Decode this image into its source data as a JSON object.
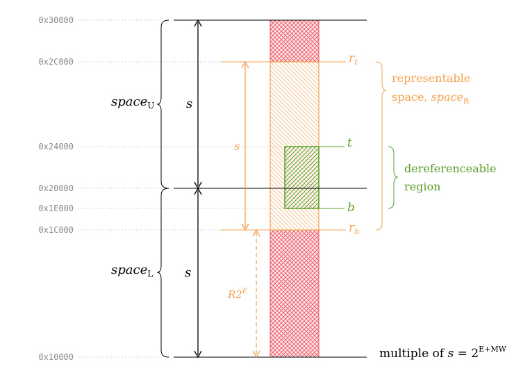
{
  "addresses": [
    "0x30000",
    "0x2C000",
    "0x24000",
    "0x20000",
    "0x1E000",
    "0x1C000",
    "0x10000"
  ],
  "labels": {
    "space_upper": {
      "base": "space",
      "sub": "U"
    },
    "space_lower": {
      "base": "space",
      "sub": "L"
    },
    "s_upper": "s",
    "s_lower": "s",
    "s_repr": "s",
    "r_top": {
      "base": "r",
      "sub": "t"
    },
    "r_bottom": {
      "base": "r",
      "sub": "b"
    },
    "t": "t",
    "b": "b",
    "representable_line1": "representable",
    "representable_line2": "space, ",
    "representable_space": {
      "base": "space",
      "sub": "R"
    },
    "dereferenceable_line1": "dereferenceable",
    "dereferenceable_line2": "region",
    "r2e": {
      "base": "R2",
      "sup": "E"
    },
    "multiple_text": "multiple of ",
    "multiple_formula": {
      "lhs": "s",
      "eq": " = 2",
      "sup": "E+MW"
    }
  },
  "colors": {
    "red": "#e8505b",
    "orange": "#f4a050",
    "green": "#5aa02c",
    "gray": "#8a8a8a",
    "black": "#000000"
  }
}
